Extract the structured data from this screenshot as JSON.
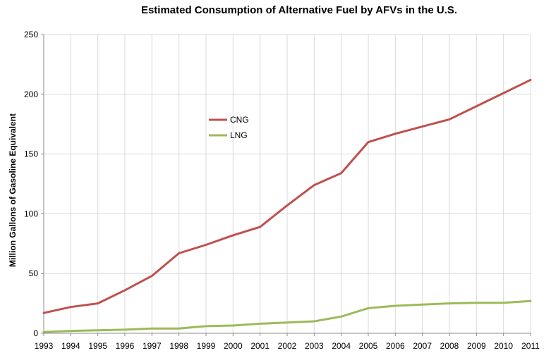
{
  "chart_data": {
    "type": "line",
    "title": "Estimated Consumption of Alternative  Fuel by AFVs in the U.S.",
    "xlabel": "",
    "ylabel": "Million Gallons of Gasoline Equivalent",
    "x": [
      "1993",
      "1994",
      "1995",
      "1996",
      "1997",
      "1998",
      "1999",
      "2000",
      "2001",
      "2002",
      "2003",
      "2004",
      "2005",
      "2006",
      "2007",
      "2008",
      "2009",
      "2010",
      "2011"
    ],
    "ylim": [
      0,
      250
    ],
    "yticks": [
      "0",
      "50",
      "100",
      "150",
      "200",
      "250"
    ],
    "grid": true,
    "legend_position": "inside-upper-center",
    "series": [
      {
        "name": "CNG",
        "color": "#c0504d",
        "values": [
          17,
          22,
          25,
          36,
          48,
          67,
          74,
          82,
          89,
          107,
          124,
          134,
          160,
          167,
          173,
          179,
          190,
          201,
          212
        ]
      },
      {
        "name": "LNG",
        "color": "#9bbb59",
        "values": [
          1,
          2,
          2.5,
          3,
          4,
          4,
          6,
          6.5,
          8,
          9,
          10,
          14,
          21,
          23,
          24,
          25,
          25.5,
          25.5,
          27
        ]
      }
    ]
  }
}
